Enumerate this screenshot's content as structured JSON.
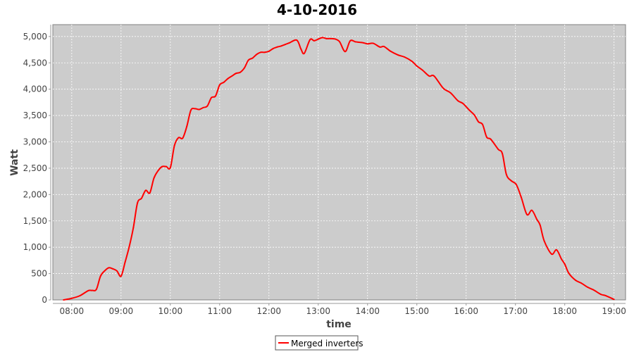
{
  "chart_data": {
    "type": "line",
    "title": "4-10-2016",
    "xlabel": "time",
    "ylabel": "Watt",
    "xlim": [
      "07:37",
      "19:14"
    ],
    "ylim": [
      0,
      5225
    ],
    "x_ticks": [
      "08:00",
      "09:00",
      "10:00",
      "11:00",
      "12:00",
      "13:00",
      "14:00",
      "15:00",
      "16:00",
      "17:00",
      "18:00",
      "19:00"
    ],
    "y_ticks": [
      0,
      500,
      1000,
      1500,
      2000,
      2500,
      3000,
      3500,
      4000,
      4500,
      5000
    ],
    "y_tick_labels": [
      "0",
      "500",
      "1,000",
      "1,500",
      "2,000",
      "2,500",
      "3,000",
      "3,500",
      "4,000",
      "4,500",
      "5,000"
    ],
    "grid": true,
    "legend_position": "bottom",
    "background": "#cccccc",
    "series": [
      {
        "name": "Merged inverters",
        "color": "#ff0000",
        "x": [
          "07:50",
          "08:00",
          "08:10",
          "08:20",
          "08:25",
          "08:30",
          "08:35",
          "08:40",
          "08:45",
          "08:50",
          "08:55",
          "09:00",
          "09:05",
          "09:10",
          "09:15",
          "09:20",
          "09:25",
          "09:30",
          "09:35",
          "09:40",
          "09:45",
          "09:50",
          "09:55",
          "10:00",
          "10:05",
          "10:10",
          "10:15",
          "10:20",
          "10:25",
          "10:30",
          "10:35",
          "10:40",
          "10:45",
          "10:50",
          "10:55",
          "11:00",
          "11:05",
          "11:10",
          "11:15",
          "11:20",
          "11:25",
          "11:30",
          "11:35",
          "11:40",
          "11:45",
          "11:50",
          "11:55",
          "12:00",
          "12:05",
          "12:10",
          "12:15",
          "12:20",
          "12:25",
          "12:34",
          "12:39",
          "12:43",
          "12:50",
          "12:55",
          "13:00",
          "13:05",
          "13:10",
          "13:15",
          "13:21",
          "13:26",
          "13:31",
          "13:34",
          "13:39",
          "13:45",
          "13:50",
          "13:55",
          "14:00",
          "14:07",
          "14:15",
          "14:20",
          "14:28",
          "14:37",
          "14:45",
          "14:54",
          "15:00",
          "15:07",
          "15:15",
          "15:21",
          "15:32",
          "15:41",
          "15:50",
          "15:56",
          "16:04",
          "16:10",
          "16:15",
          "16:20",
          "16:25",
          "16:30",
          "16:39",
          "16:44",
          "16:49",
          "16:55",
          "17:01",
          "17:07",
          "17:14",
          "17:20",
          "17:26",
          "17:30",
          "17:35",
          "17:44",
          "17:50",
          "17:56",
          "18:00",
          "18:05",
          "18:13",
          "18:20",
          "18:28",
          "18:35",
          "18:44",
          "18:50",
          "19:00"
        ],
        "values": [
          0,
          30,
          80,
          175,
          180,
          200,
          450,
          550,
          610,
          590,
          550,
          450,
          720,
          1010,
          1370,
          1840,
          1930,
          2080,
          2030,
          2310,
          2450,
          2530,
          2530,
          2510,
          2930,
          3080,
          3070,
          3290,
          3600,
          3630,
          3615,
          3650,
          3680,
          3840,
          3870,
          4080,
          4130,
          4200,
          4250,
          4300,
          4320,
          4400,
          4550,
          4590,
          4660,
          4700,
          4700,
          4720,
          4770,
          4800,
          4820,
          4850,
          4880,
          4930,
          4760,
          4680,
          4940,
          4920,
          4950,
          4980,
          4960,
          4960,
          4950,
          4900,
          4740,
          4730,
          4920,
          4900,
          4890,
          4880,
          4860,
          4870,
          4800,
          4810,
          4720,
          4650,
          4610,
          4530,
          4440,
          4360,
          4250,
          4250,
          4020,
          3930,
          3780,
          3730,
          3600,
          3510,
          3380,
          3330,
          3090,
          3050,
          2860,
          2780,
          2380,
          2260,
          2190,
          1950,
          1620,
          1700,
          1530,
          1420,
          1120,
          870,
          950,
          775,
          680,
          505,
          375,
          320,
          240,
          190,
          105,
          80,
          10
        ]
      }
    ]
  }
}
